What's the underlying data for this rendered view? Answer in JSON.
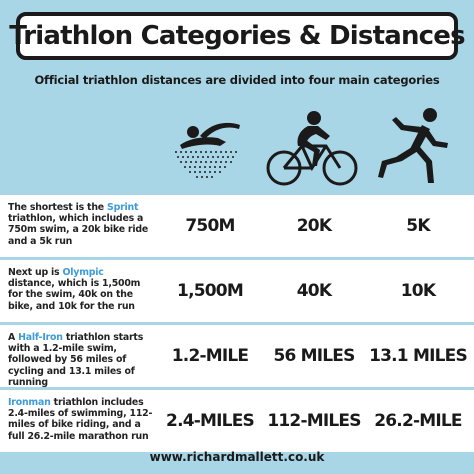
{
  "title": "Triathlon Categories & Distances",
  "subtitle": "Official triathlon distances are divided into four main categories",
  "icons": [
    "swimmer-icon",
    "cyclist-icon",
    "runner-icon"
  ],
  "colors": {
    "background": "#a9d6e6",
    "highlight": "#3c9bd8",
    "row": "#ffffff"
  },
  "rows": [
    {
      "desc_before": "The shortest is the ",
      "category": "Sprint",
      "desc_after": " triathlon, which includes a 750m swim, a 20k bike ride and a 5k run",
      "swim": "750M",
      "bike": "20K",
      "run": "5K"
    },
    {
      "desc_before": "Next up is ",
      "category": "Olympic",
      "desc_after": " distance, which is 1,500m for the swim, 40k on the bike, and 10k for the run",
      "swim": "1,500M",
      "bike": "40K",
      "run": "10K"
    },
    {
      "desc_before": "A ",
      "category": "Half-Iron",
      "desc_after": " triathlon starts with a 1.2-mile swim, followed by 56 miles of cycling and 13.1 miles of running",
      "swim": "1.2-MILE",
      "bike": "56 MILES",
      "run": "13.1 MILES"
    },
    {
      "desc_before": "",
      "category": "Ironman",
      "desc_after": " triathlon includes 2.4-miles of swimming, 112-miles of bike riding, and a full 26.2-mile marathon run",
      "swim": "2.4-MILES",
      "bike": "112-MILES",
      "run": "26.2-MILE"
    }
  ],
  "footer": "www.richardmallett.co.uk"
}
